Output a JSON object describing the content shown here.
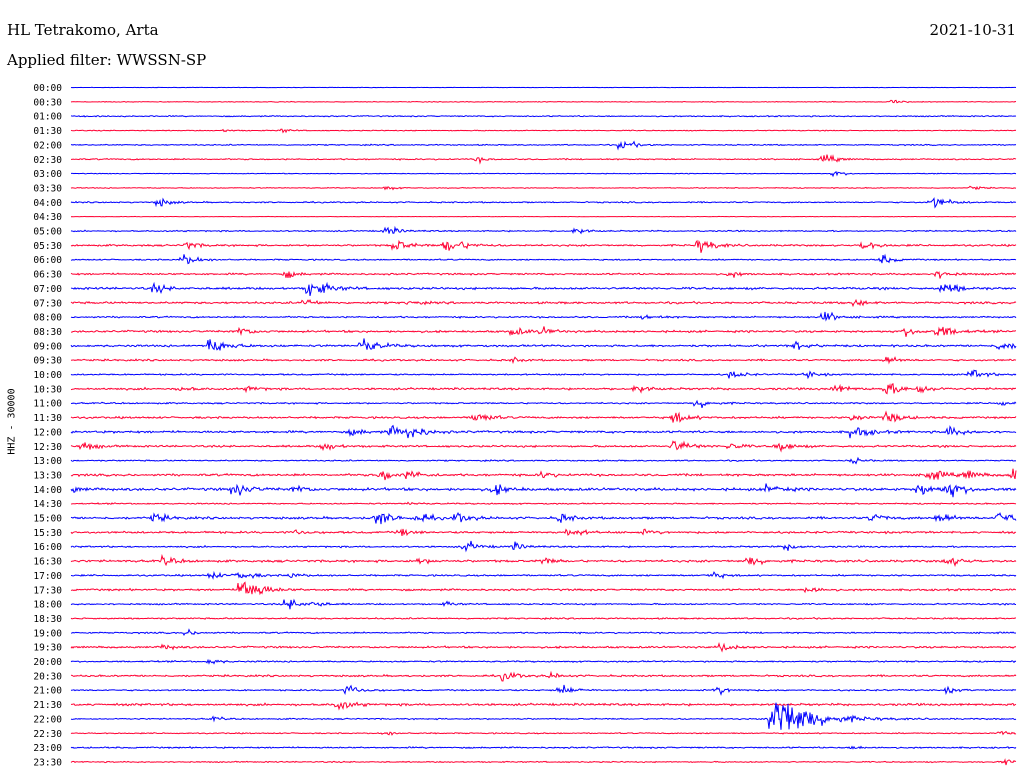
{
  "header": {
    "station": "HL Tetrakomo, Arta",
    "date": "2021-10-31",
    "filter": "Applied filter: WWSSN-SP"
  },
  "chart_data": {
    "type": "line",
    "title": "HL Tetrakomo, Arta",
    "subtitle": "Applied filter: WWSSN-SP",
    "date": "2021-10-31",
    "ylabel": "HHZ - 30000",
    "trace_colors": [
      "#0000ff",
      "#ff0033"
    ],
    "grid": false,
    "rows": [
      "00:00",
      "00:30",
      "01:00",
      "01:30",
      "02:00",
      "02:30",
      "03:00",
      "03:30",
      "04:00",
      "04:30",
      "05:00",
      "05:30",
      "06:00",
      "06:30",
      "07:00",
      "07:30",
      "08:00",
      "08:30",
      "09:00",
      "09:30",
      "10:00",
      "10:30",
      "11:00",
      "11:30",
      "12:00",
      "12:30",
      "13:00",
      "13:30",
      "14:00",
      "14:30",
      "15:00",
      "15:30",
      "16:00",
      "16:30",
      "17:00",
      "17:30",
      "18:00",
      "18:30",
      "19:00",
      "19:30",
      "20:00",
      "20:30",
      "21:00",
      "21:30",
      "22:00",
      "22:30",
      "23:00",
      "23:30"
    ],
    "noise_level": [
      0.3,
      0.5,
      0.8,
      0.6,
      0.8,
      0.9,
      0.5,
      0.6,
      0.9,
      0.3,
      0.9,
      1.2,
      0.9,
      1.2,
      1.5,
      1.4,
      1.1,
      1.4,
      1.4,
      1.2,
      1.0,
      1.4,
      1.0,
      1.3,
      1.5,
      1.3,
      0.9,
      1.5,
      1.8,
      0.9,
      1.5,
      1.4,
      1.1,
      1.5,
      1.1,
      1.3,
      1.0,
      1.0,
      1.0,
      1.3,
      1.0,
      1.2,
      1.0,
      1.5,
      0.9,
      0.8,
      1.0,
      0.8
    ],
    "events": [
      {
        "row": 1,
        "t": 0.871,
        "amp": 3
      },
      {
        "row": 3,
        "t": 0.165,
        "amp": 2
      },
      {
        "row": 3,
        "t": 0.225,
        "amp": 3
      },
      {
        "row": 4,
        "t": 0.585,
        "amp": 7
      },
      {
        "row": 5,
        "t": 0.43,
        "amp": 4
      },
      {
        "row": 5,
        "t": 0.8,
        "amp": 6
      },
      {
        "row": 6,
        "t": 0.81,
        "amp": 4
      },
      {
        "row": 7,
        "t": 0.335,
        "amp": 3
      },
      {
        "row": 7,
        "t": 0.955,
        "amp": 3
      },
      {
        "row": 8,
        "t": 0.094,
        "amp": 6
      },
      {
        "row": 8,
        "t": 0.913,
        "amp": 9
      },
      {
        "row": 10,
        "t": 0.336,
        "amp": 6
      },
      {
        "row": 10,
        "t": 0.535,
        "amp": 5
      },
      {
        "row": 11,
        "t": 0.125,
        "amp": 5
      },
      {
        "row": 11,
        "t": 0.345,
        "amp": 8
      },
      {
        "row": 11,
        "t": 0.4,
        "amp": 11
      },
      {
        "row": 11,
        "t": 0.667,
        "amp": 9
      },
      {
        "row": 11,
        "t": 0.84,
        "amp": 7
      },
      {
        "row": 12,
        "t": 0.12,
        "amp": 8
      },
      {
        "row": 12,
        "t": 0.86,
        "amp": 6
      },
      {
        "row": 13,
        "t": 0.23,
        "amp": 5
      },
      {
        "row": 13,
        "t": 0.7,
        "amp": 4
      },
      {
        "row": 13,
        "t": 0.92,
        "amp": 6
      },
      {
        "row": 14,
        "t": 0.09,
        "amp": 6
      },
      {
        "row": 14,
        "t": 0.255,
        "amp": 12
      },
      {
        "row": 14,
        "t": 0.925,
        "amp": 9
      },
      {
        "row": 15,
        "t": 0.25,
        "amp": 5
      },
      {
        "row": 15,
        "t": 0.36,
        "amp": 3
      },
      {
        "row": 15,
        "t": 0.83,
        "amp": 5
      },
      {
        "row": 16,
        "t": 0.61,
        "amp": 5
      },
      {
        "row": 16,
        "t": 0.8,
        "amp": 7
      },
      {
        "row": 17,
        "t": 0.18,
        "amp": 6
      },
      {
        "row": 17,
        "t": 0.47,
        "amp": 6
      },
      {
        "row": 17,
        "t": 0.5,
        "amp": 5
      },
      {
        "row": 17,
        "t": 0.885,
        "amp": 6
      },
      {
        "row": 17,
        "t": 0.92,
        "amp": 9
      },
      {
        "row": 18,
        "t": 0.15,
        "amp": 11
      },
      {
        "row": 18,
        "t": 0.31,
        "amp": 10
      },
      {
        "row": 18,
        "t": 0.77,
        "amp": 6
      },
      {
        "row": 18,
        "t": 0.985,
        "amp": 7
      },
      {
        "row": 19,
        "t": 0.47,
        "amp": 3
      },
      {
        "row": 19,
        "t": 0.865,
        "amp": 5
      },
      {
        "row": 20,
        "t": 0.7,
        "amp": 6
      },
      {
        "row": 20,
        "t": 0.78,
        "amp": 5
      },
      {
        "row": 20,
        "t": 0.955,
        "amp": 7
      },
      {
        "row": 21,
        "t": 0.12,
        "amp": 4
      },
      {
        "row": 21,
        "t": 0.19,
        "amp": 4
      },
      {
        "row": 21,
        "t": 0.6,
        "amp": 6
      },
      {
        "row": 21,
        "t": 0.81,
        "amp": 6
      },
      {
        "row": 21,
        "t": 0.865,
        "amp": 9
      },
      {
        "row": 21,
        "t": 0.9,
        "amp": 6
      },
      {
        "row": 22,
        "t": 0.665,
        "amp": 7
      },
      {
        "row": 22,
        "t": 0.985,
        "amp": 4
      },
      {
        "row": 23,
        "t": 0.43,
        "amp": 8
      },
      {
        "row": 23,
        "t": 0.64,
        "amp": 8
      },
      {
        "row": 23,
        "t": 0.83,
        "amp": 5
      },
      {
        "row": 23,
        "t": 0.865,
        "amp": 8
      },
      {
        "row": 24,
        "t": 0.3,
        "amp": 5
      },
      {
        "row": 24,
        "t": 0.34,
        "amp": 7
      },
      {
        "row": 24,
        "t": 0.36,
        "amp": 9
      },
      {
        "row": 24,
        "t": 0.83,
        "amp": 9
      },
      {
        "row": 24,
        "t": 0.93,
        "amp": 7
      },
      {
        "row": 25,
        "t": 0.015,
        "amp": 6
      },
      {
        "row": 25,
        "t": 0.27,
        "amp": 6
      },
      {
        "row": 25,
        "t": 0.64,
        "amp": 9
      },
      {
        "row": 25,
        "t": 0.7,
        "amp": 5
      },
      {
        "row": 25,
        "t": 0.75,
        "amp": 7
      },
      {
        "row": 26,
        "t": 0.83,
        "amp": 4
      },
      {
        "row": 27,
        "t": 0.33,
        "amp": 8
      },
      {
        "row": 27,
        "t": 0.36,
        "amp": 6
      },
      {
        "row": 27,
        "t": 0.5,
        "amp": 5
      },
      {
        "row": 27,
        "t": 0.91,
        "amp": 8
      },
      {
        "row": 27,
        "t": 0.95,
        "amp": 6
      },
      {
        "row": 27,
        "t": 0.998,
        "amp": 12
      },
      {
        "row": 28,
        "t": 0.0,
        "amp": 5
      },
      {
        "row": 28,
        "t": 0.175,
        "amp": 9
      },
      {
        "row": 28,
        "t": 0.24,
        "amp": 5
      },
      {
        "row": 28,
        "t": 0.45,
        "amp": 7
      },
      {
        "row": 28,
        "t": 0.74,
        "amp": 7
      },
      {
        "row": 28,
        "t": 0.9,
        "amp": 8
      },
      {
        "row": 28,
        "t": 0.93,
        "amp": 10
      },
      {
        "row": 29,
        "t": 0.36,
        "amp": 3
      },
      {
        "row": 30,
        "t": 0.09,
        "amp": 6
      },
      {
        "row": 30,
        "t": 0.325,
        "amp": 10
      },
      {
        "row": 30,
        "t": 0.37,
        "amp": 6
      },
      {
        "row": 30,
        "t": 0.41,
        "amp": 7
      },
      {
        "row": 30,
        "t": 0.52,
        "amp": 6
      },
      {
        "row": 30,
        "t": 0.85,
        "amp": 6
      },
      {
        "row": 30,
        "t": 0.92,
        "amp": 7
      },
      {
        "row": 30,
        "t": 0.985,
        "amp": 10
      },
      {
        "row": 31,
        "t": 0.24,
        "amp": 4
      },
      {
        "row": 31,
        "t": 0.35,
        "amp": 5
      },
      {
        "row": 31,
        "t": 0.53,
        "amp": 6
      },
      {
        "row": 31,
        "t": 0.61,
        "amp": 4
      },
      {
        "row": 32,
        "t": 0.42,
        "amp": 7
      },
      {
        "row": 32,
        "t": 0.47,
        "amp": 5
      },
      {
        "row": 32,
        "t": 0.76,
        "amp": 5
      },
      {
        "row": 33,
        "t": 0.1,
        "amp": 6
      },
      {
        "row": 33,
        "t": 0.37,
        "amp": 4
      },
      {
        "row": 33,
        "t": 0.5,
        "amp": 5
      },
      {
        "row": 33,
        "t": 0.72,
        "amp": 7
      },
      {
        "row": 33,
        "t": 0.93,
        "amp": 7
      },
      {
        "row": 34,
        "t": 0.15,
        "amp": 5
      },
      {
        "row": 34,
        "t": 0.18,
        "amp": 7
      },
      {
        "row": 34,
        "t": 0.235,
        "amp": 4
      },
      {
        "row": 34,
        "t": 0.68,
        "amp": 5
      },
      {
        "row": 35,
        "t": 0.18,
        "amp": 26
      },
      {
        "row": 35,
        "t": 0.78,
        "amp": 6
      },
      {
        "row": 36,
        "t": 0.23,
        "amp": 8
      },
      {
        "row": 36,
        "t": 0.26,
        "amp": 4
      },
      {
        "row": 36,
        "t": 0.4,
        "amp": 3
      },
      {
        "row": 38,
        "t": 0.125,
        "amp": 4
      },
      {
        "row": 39,
        "t": 0.1,
        "amp": 4
      },
      {
        "row": 39,
        "t": 0.69,
        "amp": 6
      },
      {
        "row": 40,
        "t": 0.15,
        "amp": 4
      },
      {
        "row": 41,
        "t": 0.46,
        "amp": 7
      },
      {
        "row": 41,
        "t": 0.51,
        "amp": 4
      },
      {
        "row": 42,
        "t": 0.295,
        "amp": 7
      },
      {
        "row": 42,
        "t": 0.52,
        "amp": 7
      },
      {
        "row": 42,
        "t": 0.685,
        "amp": 6
      },
      {
        "row": 42,
        "t": 0.93,
        "amp": 4
      },
      {
        "row": 43,
        "t": 0.285,
        "amp": 7
      },
      {
        "row": 44,
        "t": 0.74,
        "amp": 52
      },
      {
        "row": 44,
        "t": 0.152,
        "amp": 3
      },
      {
        "row": 45,
        "t": 0.335,
        "amp": 3
      },
      {
        "row": 45,
        "t": 0.985,
        "amp": 3
      },
      {
        "row": 46,
        "t": 0.83,
        "amp": 3
      },
      {
        "row": 47,
        "t": 0.988,
        "amp": 5
      }
    ]
  }
}
